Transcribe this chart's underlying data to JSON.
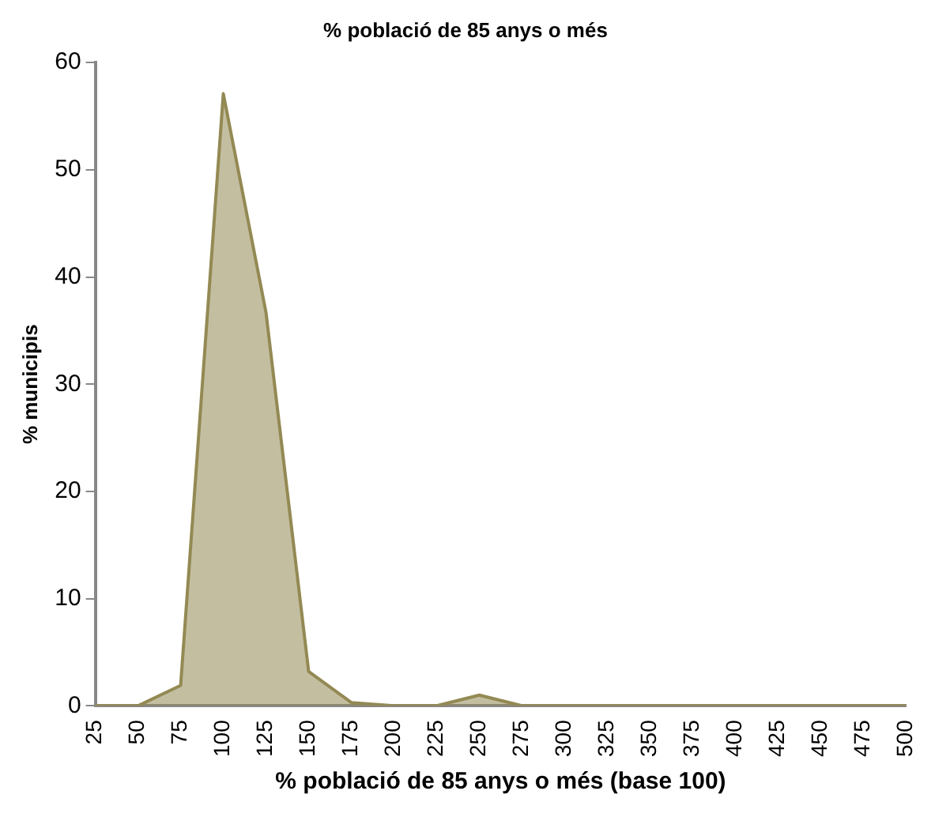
{
  "chart_data": {
    "type": "area",
    "title": "% població de 85 anys o més",
    "xlabel": "% població de 85 anys o més (base 100)",
    "ylabel": "% municipis",
    "categories": [
      "25",
      "50",
      "75",
      "100",
      "125",
      "150",
      "175",
      "200",
      "225",
      "250",
      "275",
      "300",
      "325",
      "350",
      "375",
      "400",
      "425",
      "450",
      "475",
      "500"
    ],
    "series": [
      {
        "color": "#938953",
        "values": [
          0,
          0,
          1.9,
          57.1,
          36.7,
          3.2,
          0.3,
          0,
          0,
          1,
          0,
          0,
          0,
          0,
          0,
          0,
          0,
          0,
          0,
          0
        ]
      }
    ],
    "ylim": [
      0,
      60
    ],
    "yticks": [
      0,
      10,
      20,
      30,
      40,
      50,
      60
    ],
    "grid": false,
    "legend": false
  }
}
